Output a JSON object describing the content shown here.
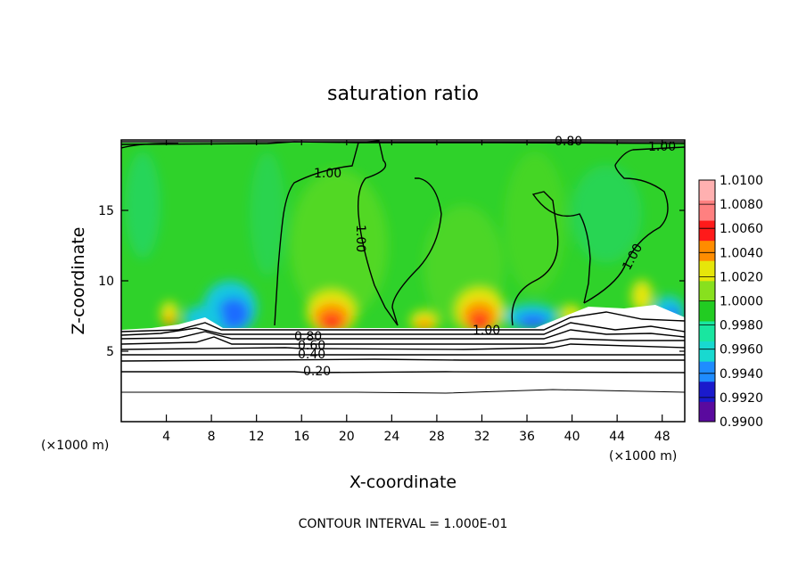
{
  "chart_data": {
    "type": "heatmap",
    "title": "saturation ratio",
    "xlabel": "X-coordinate",
    "ylabel": "Z-coordinate",
    "x_unit": "(×1000 m)",
    "y_unit": "(×1000 m)",
    "xlim": [
      0,
      50
    ],
    "ylim": [
      0,
      20
    ],
    "x_ticks": [
      4,
      8,
      12,
      16,
      20,
      24,
      28,
      32,
      36,
      40,
      44,
      48
    ],
    "y_ticks": [
      5,
      10,
      15
    ],
    "footer": "CONTOUR INTERVAL = 1.000E-01",
    "colorbar": {
      "levels": [
        0.99,
        0.992,
        0.994,
        0.996,
        0.998,
        1.0,
        1.002,
        1.004,
        1.006,
        1.008,
        1.01
      ],
      "labels": [
        "0.9900",
        "0.9920",
        "0.9940",
        "0.9960",
        "0.9980",
        "1.0000",
        "1.0020",
        "1.0040",
        "1.0060",
        "1.0080",
        "1.0100"
      ],
      "colors": [
        "#5a0a9e",
        "#1a1acc",
        "#1f8cff",
        "#18d9d0",
        "#19e6a0",
        "#22cc22",
        "#88e01e",
        "#e6e60a",
        "#ff8c00",
        "#ff1a1a",
        "#ff8080",
        "#ffb0b0"
      ]
    },
    "contour_labels": [
      "0.80",
      "1.00",
      "1.00",
      "1.00",
      "1.00",
      "1.00",
      "0.80",
      "0.60",
      "0.40",
      "0.20"
    ]
  }
}
